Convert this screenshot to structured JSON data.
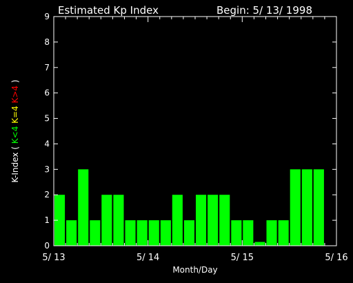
{
  "chart_data": {
    "type": "bar",
    "title": "Estimated Kp Index",
    "begin_label": "Begin: 5/ 13/ 1998",
    "xlabel": "Month/Day",
    "ylabel_parts": [
      {
        "text": "K-Index ( ",
        "color": "#ffffff"
      },
      {
        "text": "K<4",
        "color": "#00ff00"
      },
      {
        "text": "  ",
        "color": "#ffffff"
      },
      {
        "text": "K=4",
        "color": "#ffff00"
      },
      {
        "text": "  ",
        "color": "#ffffff"
      },
      {
        "text": "K>4",
        "color": "#ff0000"
      },
      {
        "text": " )",
        "color": "#ffffff"
      }
    ],
    "ylim": [
      0,
      9
    ],
    "yticks": [
      "0",
      "1",
      "2",
      "3",
      "4",
      "5",
      "6",
      "7",
      "8",
      "9"
    ],
    "xticks": [
      "5/ 13",
      "5/ 14",
      "5/ 15",
      "5/ 16"
    ],
    "bar_color": "#00ff00",
    "interval_hours": 3,
    "values": [
      2,
      1,
      3,
      1,
      2,
      2,
      1,
      1,
      1,
      1,
      2,
      1,
      2,
      2,
      2,
      1,
      1,
      0.15,
      1,
      1,
      3,
      3,
      3
    ],
    "grid": false
  }
}
